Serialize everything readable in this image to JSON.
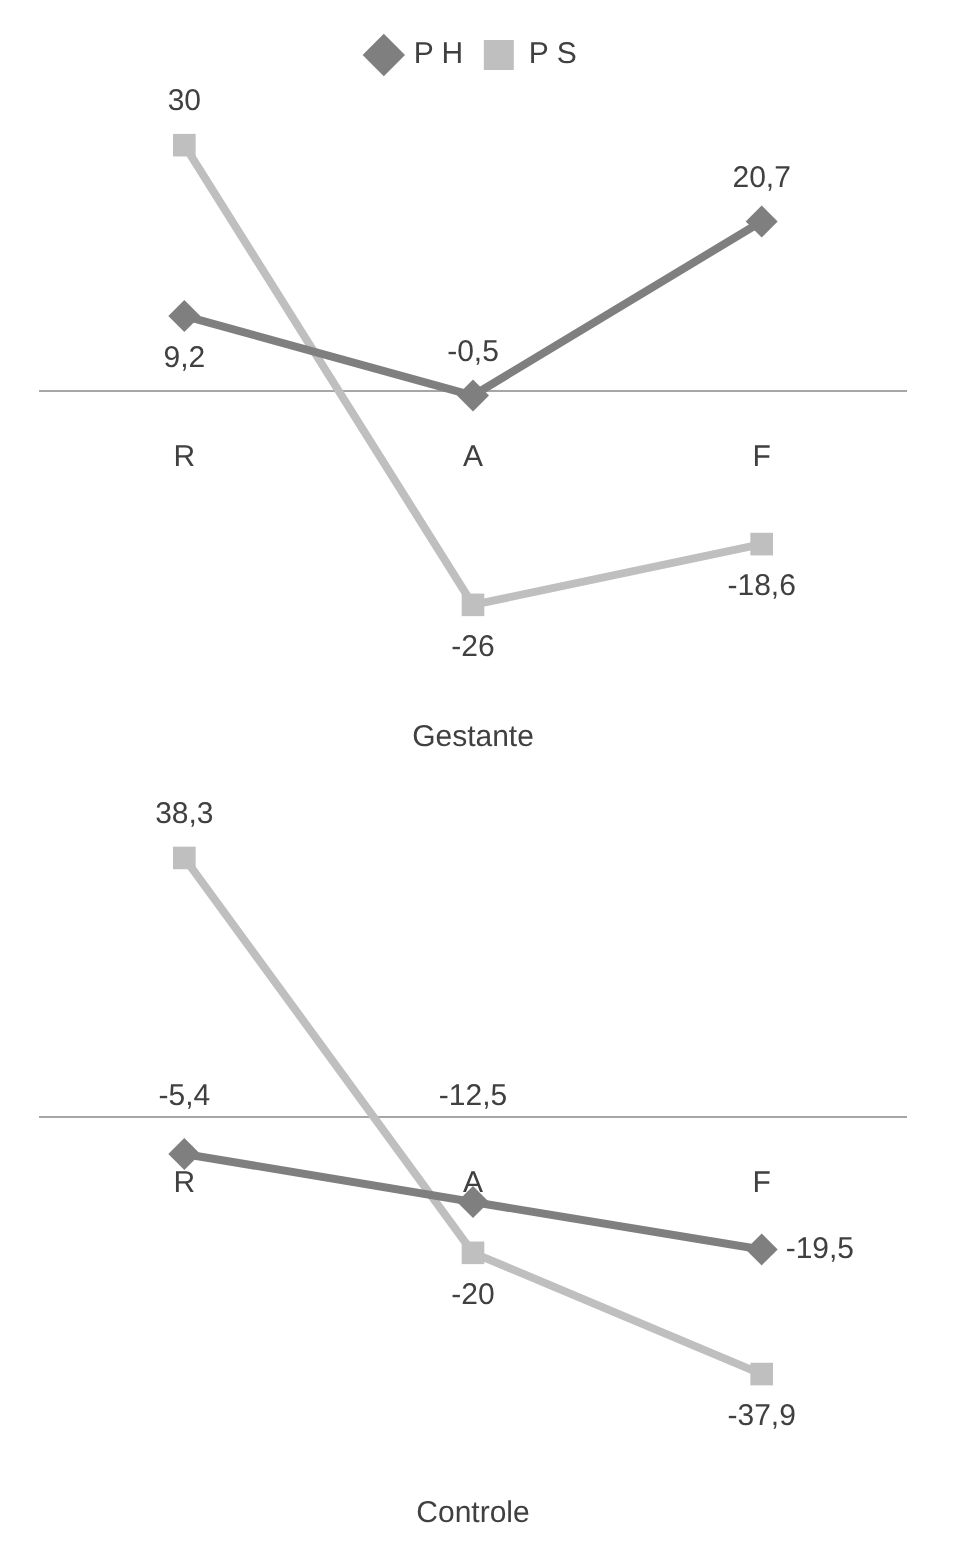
{
  "chart_data": [
    {
      "type": "line",
      "title": "Gestante",
      "categories": [
        "R",
        "A",
        "F"
      ],
      "series": [
        {
          "name": "P H",
          "color": "#7f7f7f",
          "marker": "diamond",
          "values": [
            9.2,
            -0.5,
            20.7
          ],
          "value_labels": [
            "9,2",
            "-0,5",
            "20,7"
          ]
        },
        {
          "name": "P S",
          "color": "#bfbfbf",
          "marker": "square",
          "values": [
            30,
            -26,
            -18.6
          ],
          "value_labels": [
            "30",
            "-26",
            "-18,6"
          ]
        }
      ],
      "legend": "top",
      "grid": false
    },
    {
      "type": "line",
      "title": "Controle",
      "categories": [
        "R",
        "A",
        "F"
      ],
      "series": [
        {
          "color": "#7f7f7f",
          "marker": "diamond",
          "values": [
            -5.4,
            -12.5,
            -19.5
          ],
          "value_labels": [
            "-5,4",
            "-12,5",
            "-19,5"
          ]
        },
        {
          "color": "#bfbfbf",
          "marker": "square",
          "values": [
            38.3,
            -20,
            -37.9
          ],
          "value_labels": [
            "38,3",
            "-20",
            "-37,9"
          ]
        }
      ],
      "legend": false,
      "grid": false
    }
  ]
}
